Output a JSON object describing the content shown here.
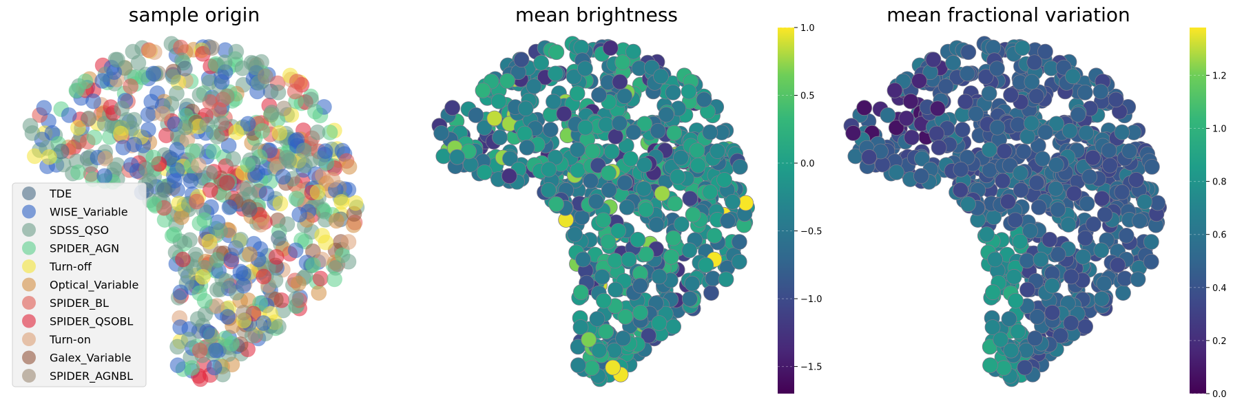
{
  "chart_data": [
    {
      "type": "scatter",
      "title": "sample origin",
      "legend": {
        "placement": "lower-left",
        "entries": [
          {
            "name": "TDE",
            "color": "#4a6a86"
          },
          {
            "name": "WISE_Variable",
            "color": "#2f62c4"
          },
          {
            "name": "SDSS_QSO",
            "color": "#6e9e8a"
          },
          {
            "name": "SPIDER_AGN",
            "color": "#5ccf8c"
          },
          {
            "name": "Turn-off",
            "color": "#f4e43a"
          },
          {
            "name": "Optical_Variable",
            "color": "#d48f44"
          },
          {
            "name": "SPIDER_BL",
            "color": "#e05a52"
          },
          {
            "name": "SPIDER_QSOBL",
            "color": "#e0243a"
          },
          {
            "name": "Turn-on",
            "color": "#dca077"
          },
          {
            "name": "Galex_Variable",
            "color": "#93553c"
          },
          {
            "name": "SPIDER_AGNBL",
            "color": "#9c8a74"
          }
        ]
      },
      "axes_visible": false
    },
    {
      "type": "scatter",
      "title": "mean brightness",
      "colormap": "viridis",
      "colorbar": {
        "min": -1.7,
        "max": 1.0,
        "ticks": [
          "1.0",
          "0.5",
          "0.0",
          "−0.5",
          "−1.0",
          "−1.5"
        ],
        "tick_values": [
          1.0,
          0.5,
          0.0,
          -0.5,
          -1.0,
          -1.5
        ]
      },
      "axes_visible": false
    },
    {
      "type": "scatter",
      "title": "mean fractional variation",
      "colormap": "viridis",
      "colorbar": {
        "min": 0.0,
        "max": 1.38,
        "ticks": [
          "1.2",
          "1.0",
          "0.8",
          "0.6",
          "0.4",
          "0.2",
          "0.0"
        ],
        "tick_values": [
          1.2,
          1.0,
          0.8,
          0.6,
          0.4,
          0.2,
          0.0
        ]
      },
      "axes_visible": false
    }
  ]
}
